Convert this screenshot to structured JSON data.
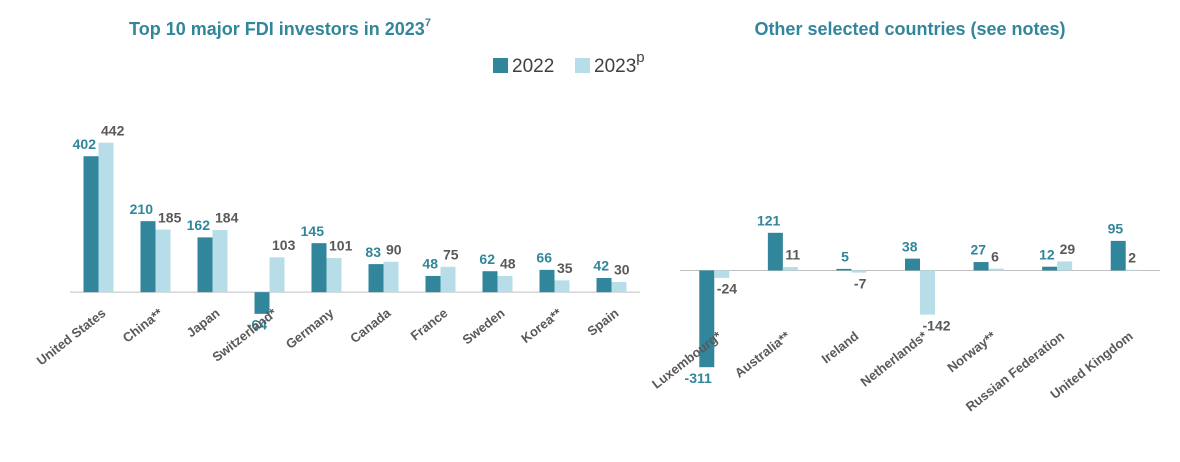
{
  "chart_data": [
    {
      "type": "bar",
      "title": "Top 10 major FDI investors in 2023",
      "title_superscript": "7",
      "categories": [
        "United States",
        "China**",
        "Japan",
        "Switzerland*",
        "Germany",
        "Canada",
        "France",
        "Sweden",
        "Korea**",
        "Spain"
      ],
      "series": [
        {
          "name": "2022",
          "color": "#31869b",
          "values": [
            402,
            210,
            162,
            -64,
            145,
            83,
            48,
            62,
            66,
            42
          ]
        },
        {
          "name": "2023",
          "name_superscript": "p",
          "color": "#b7dee8",
          "values": [
            442,
            185,
            184,
            103,
            101,
            90,
            75,
            48,
            35,
            30
          ]
        }
      ],
      "ylim": [
        -100,
        450
      ]
    },
    {
      "type": "bar",
      "title": "Other selected countries (see notes)",
      "categories": [
        "Luxembourg*",
        "Australia**",
        "Ireland",
        "Netherlands*",
        "Norway**",
        "Russian Federation",
        "United Kingdom"
      ],
      "series": [
        {
          "name": "2022",
          "color": "#31869b",
          "values": [
            -311,
            121,
            5,
            38,
            27,
            12,
            95
          ]
        },
        {
          "name": "2023",
          "name_superscript": "p",
          "color": "#b7dee8",
          "values": [
            -24,
            11,
            -7,
            -142,
            6,
            29,
            2
          ]
        }
      ],
      "ylim": [
        -320,
        130
      ]
    }
  ]
}
